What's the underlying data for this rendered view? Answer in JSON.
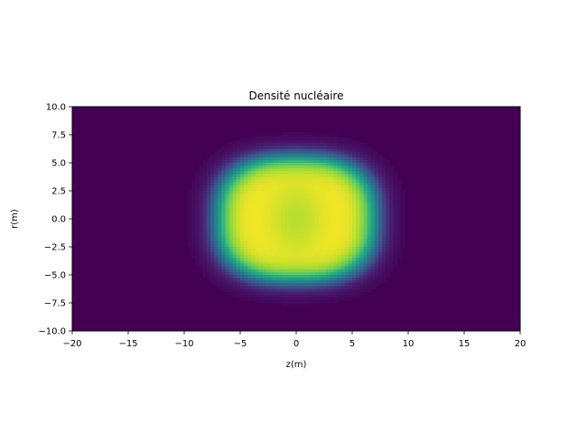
{
  "chart_data": {
    "type": "heatmap",
    "title": "Densité nucléaire",
    "xlabel": "z(m)",
    "ylabel": "r(m)",
    "xlim": [
      -20,
      20
    ],
    "ylim": [
      -10,
      10
    ],
    "x_ticks": [
      -20,
      -15,
      -10,
      -5,
      0,
      5,
      10,
      15,
      20
    ],
    "x_tick_labels": [
      "−20",
      "−15",
      "−10",
      "−5",
      "0",
      "5",
      "10",
      "15",
      "20"
    ],
    "y_ticks": [
      -10.0,
      -7.5,
      -5.0,
      -2.5,
      0.0,
      2.5,
      5.0,
      7.5,
      10.0
    ],
    "y_tick_labels": [
      "−10.0",
      "−7.5",
      "−5.0",
      "−2.5",
      "0.0",
      "2.5",
      "5.0",
      "7.5",
      "10.0"
    ],
    "grid": false,
    "colormap": "viridis",
    "background_color": "#440154",
    "saturated_color": "#fde725",
    "density_field": {
      "shape": "ellipsoidal plateau",
      "center_z": 0,
      "center_r": 0,
      "half_width_z": 7.0,
      "half_width_r": 5.5,
      "edge_diffuseness": 0.7,
      "central_dip": 0.1,
      "grid_nz": 120,
      "grid_nr": 80
    }
  }
}
